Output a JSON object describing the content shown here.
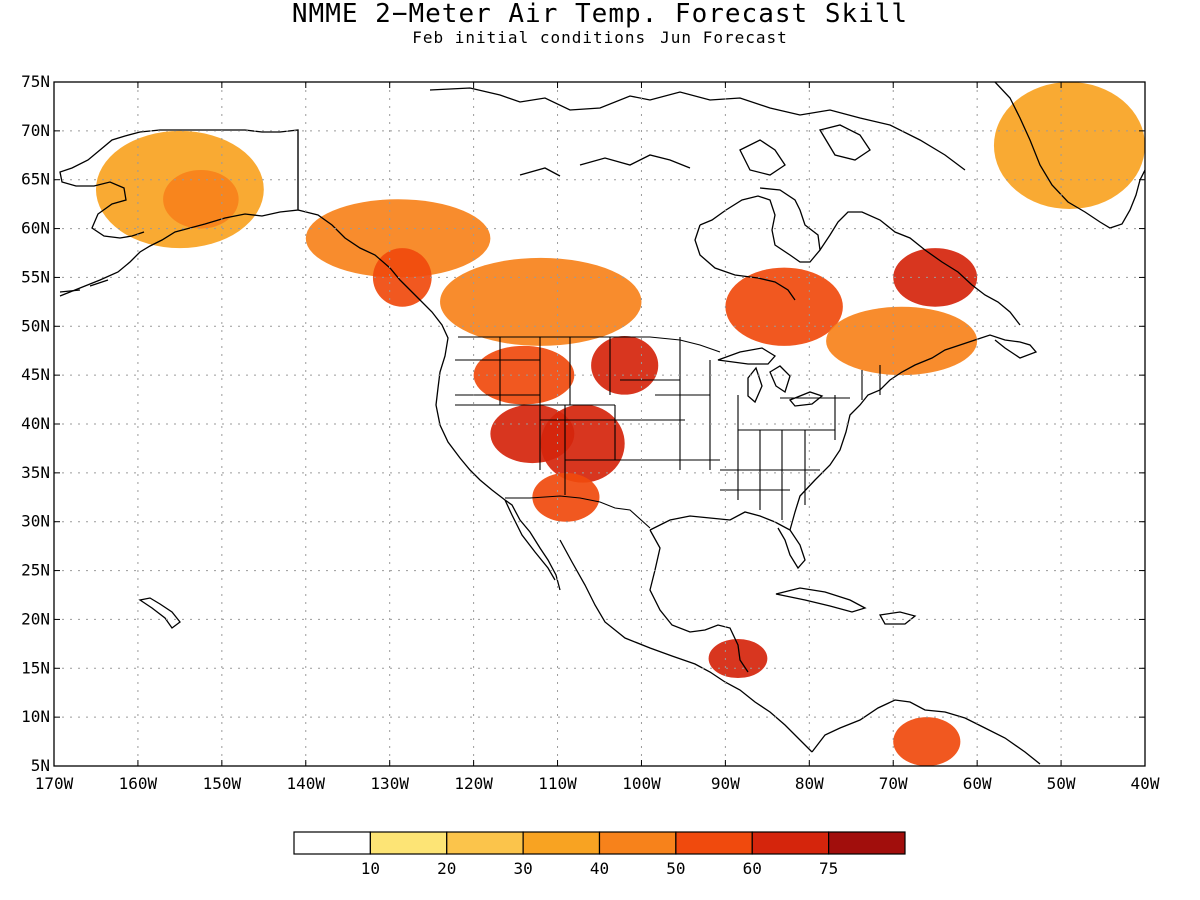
{
  "title": "NMME 2−Meter Air Temp. Forecast Skill",
  "subtitle": {
    "initial_conditions": "Feb initial conditions",
    "forecast": "Jun Forecast"
  },
  "map": {
    "lat_range": [
      5,
      75
    ],
    "lon_range": [
      -170,
      -40
    ],
    "lat_ticks": [
      "75N",
      "70N",
      "65N",
      "60N",
      "55N",
      "50N",
      "45N",
      "40N",
      "35N",
      "30N",
      "25N",
      "20N",
      "15N",
      "10N",
      "5N"
    ],
    "lon_ticks": [
      "170W",
      "160W",
      "150W",
      "140W",
      "130W",
      "120W",
      "110W",
      "100W",
      "90W",
      "80W",
      "70W",
      "60W",
      "50W",
      "40W"
    ],
    "gridlines": "dotted"
  },
  "legend": {
    "labels": [
      "10",
      "20",
      "30",
      "40",
      "50",
      "60",
      "75"
    ],
    "colors": [
      "#ffffff",
      "#fde475",
      "#fbc44b",
      "#f8a322",
      "#f7821b",
      "#f04a0d",
      "#d5250c",
      "#a10e0c"
    ]
  },
  "chart_data": {
    "type": "heatmap",
    "variable": "2-Meter Air Temp. Forecast Skill",
    "color_levels": [
      10,
      20,
      30,
      40,
      50,
      60,
      75
    ],
    "palette": [
      "#ffffff",
      "#fde475",
      "#fbc44b",
      "#f8a322",
      "#f7821b",
      "#f04a0d",
      "#d5250c",
      "#a10e0c"
    ],
    "regions": [
      {
        "lon": [
          -165,
          -145
        ],
        "lat": [
          58,
          70
        ],
        "level": 30
      },
      {
        "lon": [
          -157,
          -148
        ],
        "lat": [
          60,
          66
        ],
        "level": 40
      },
      {
        "lon": [
          -140,
          -118
        ],
        "lat": [
          55,
          63
        ],
        "level": 40
      },
      {
        "lon": [
          -132,
          -125
        ],
        "lat": [
          52,
          58
        ],
        "level": 50
      },
      {
        "lon": [
          -124,
          -100
        ],
        "lat": [
          48,
          57
        ],
        "level": 40
      },
      {
        "lon": [
          -120,
          -108
        ],
        "lat": [
          42,
          48
        ],
        "level": 50
      },
      {
        "lon": [
          -118,
          -108
        ],
        "lat": [
          36,
          42
        ],
        "level": 60
      },
      {
        "lon": [
          -112,
          -102
        ],
        "lat": [
          34,
          42
        ],
        "level": 60
      },
      {
        "lon": [
          -106,
          -98
        ],
        "lat": [
          43,
          49
        ],
        "level": 60
      },
      {
        "lon": [
          -113,
          -105
        ],
        "lat": [
          30,
          35
        ],
        "level": 50
      },
      {
        "lon": [
          -90,
          -76
        ],
        "lat": [
          48,
          56
        ],
        "level": 50
      },
      {
        "lon": [
          -70,
          -60
        ],
        "lat": [
          52,
          58
        ],
        "level": 60
      },
      {
        "lon": [
          -78,
          -60
        ],
        "lat": [
          45,
          52
        ],
        "level": 40
      },
      {
        "lon": [
          -92,
          -85
        ],
        "lat": [
          14,
          18
        ],
        "level": 60
      },
      {
        "lon": [
          -70,
          -62
        ],
        "lat": [
          5,
          10
        ],
        "level": 50
      },
      {
        "lon": [
          -58,
          -40
        ],
        "lat": [
          62,
          75
        ],
        "level": 30
      }
    ]
  }
}
